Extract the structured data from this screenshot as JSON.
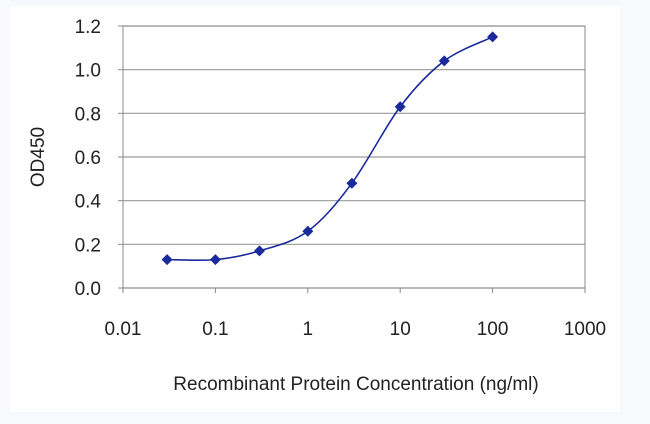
{
  "chart_data": {
    "type": "scatter",
    "title": "",
    "xlabel": "Recombinant Protein Concentration (ng/ml)",
    "ylabel": "OD450",
    "x_scale": "log",
    "xlim": [
      0.01,
      1000
    ],
    "ylim": [
      0,
      1.2
    ],
    "x_tick_values": [
      0.01,
      0.1,
      1,
      10,
      100,
      1000
    ],
    "x_tick_labels": [
      "0.01",
      "0.1",
      "1",
      "10",
      "100",
      "1000"
    ],
    "y_tick_values": [
      0,
      0.2,
      0.4,
      0.6,
      0.8,
      1.0,
      1.2
    ],
    "y_tick_labels": [
      "0.0",
      "0.2",
      "0.4",
      "0.6",
      "0.8",
      "1.0",
      "1.2"
    ],
    "grid": "horizontal",
    "legend": "none",
    "series": [
      {
        "x": [
          0.03,
          0.1,
          0.3,
          1,
          3,
          10,
          30,
          100
        ],
        "y": [
          0.13,
          0.13,
          0.17,
          0.26,
          0.48,
          0.83,
          1.04,
          1.15
        ],
        "marker": "diamond",
        "color": "#1a2a9c",
        "line": "smooth"
      }
    ]
  }
}
